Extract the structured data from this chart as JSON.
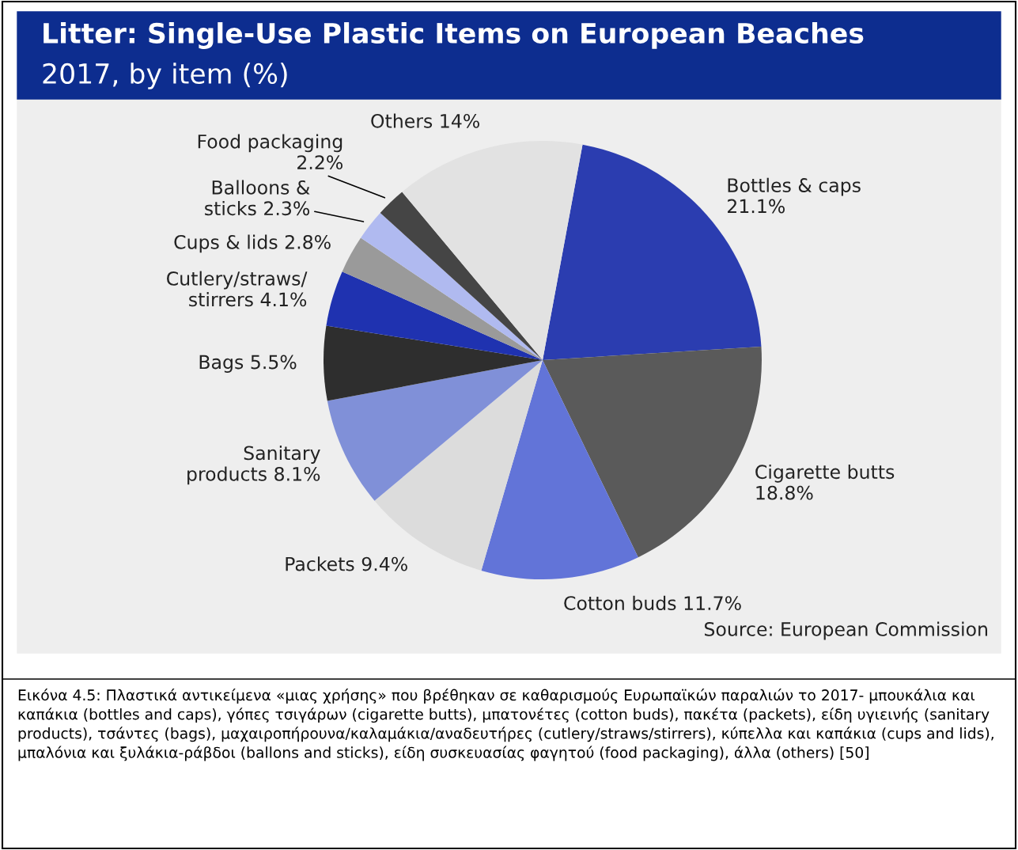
{
  "chart_data": {
    "type": "pie",
    "title": "Litter: Single-Use Plastic Items on European Beaches",
    "subtitle": "2017, by item (%)",
    "categories": [
      "Bottles & caps",
      "Cigarette butts",
      "Cotton buds",
      "Packets",
      "Sanitary\nproducts",
      "Bags",
      "Cutlery/straws/\nstirrers",
      "Cups & lids",
      "Balloons &\nsticks",
      "Food packaging",
      "Others"
    ],
    "values": [
      21.1,
      18.8,
      11.7,
      9.4,
      8.1,
      5.5,
      4.1,
      2.8,
      2.3,
      2.2,
      14
    ],
    "value_labels": [
      "21.1%",
      "18.8%",
      "11.7%",
      "9.4%",
      "8.1%",
      "5.5%",
      "4.1%",
      "2.8%",
      "2.3%",
      "2.2%",
      "14%"
    ],
    "colors": [
      "#2b3db0",
      "#5a5a5a",
      "#6274d8",
      "#dcdcdc",
      "#8090d8",
      "#2e2e2e",
      "#1f32b0",
      "#9a9a9a",
      "#b0baf0",
      "#454545",
      "#e2e2e2"
    ],
    "annotations": [
      "Source: European Commission",
      "Εικόνα 4.5: Πλαστικά αντικείμενα «μιας χρήσης» που βρέθηκαν σε καθαρισμούς Ευρωπαϊκών παραλιών το 2017- μπουκάλια και καπάκια (bottles and caps), γόπες τσιγάρων (cigarette butts), μπατονέτες (cotton buds), πακέτα (packets), είδη υγιεινής (sanitary products), τσάντες (bags), μαχαιροπήρουνα/καλαμάκια/αναδευτήρες (cutlery/straws/stirrers), κύπελλα και καπάκια (cups and lids), μπαλόνια και ξυλάκια-ράβδοι (ballons and sticks), είδη συσκευασίας φαγητού (food packaging), άλλα (others) [50]"
    ]
  }
}
